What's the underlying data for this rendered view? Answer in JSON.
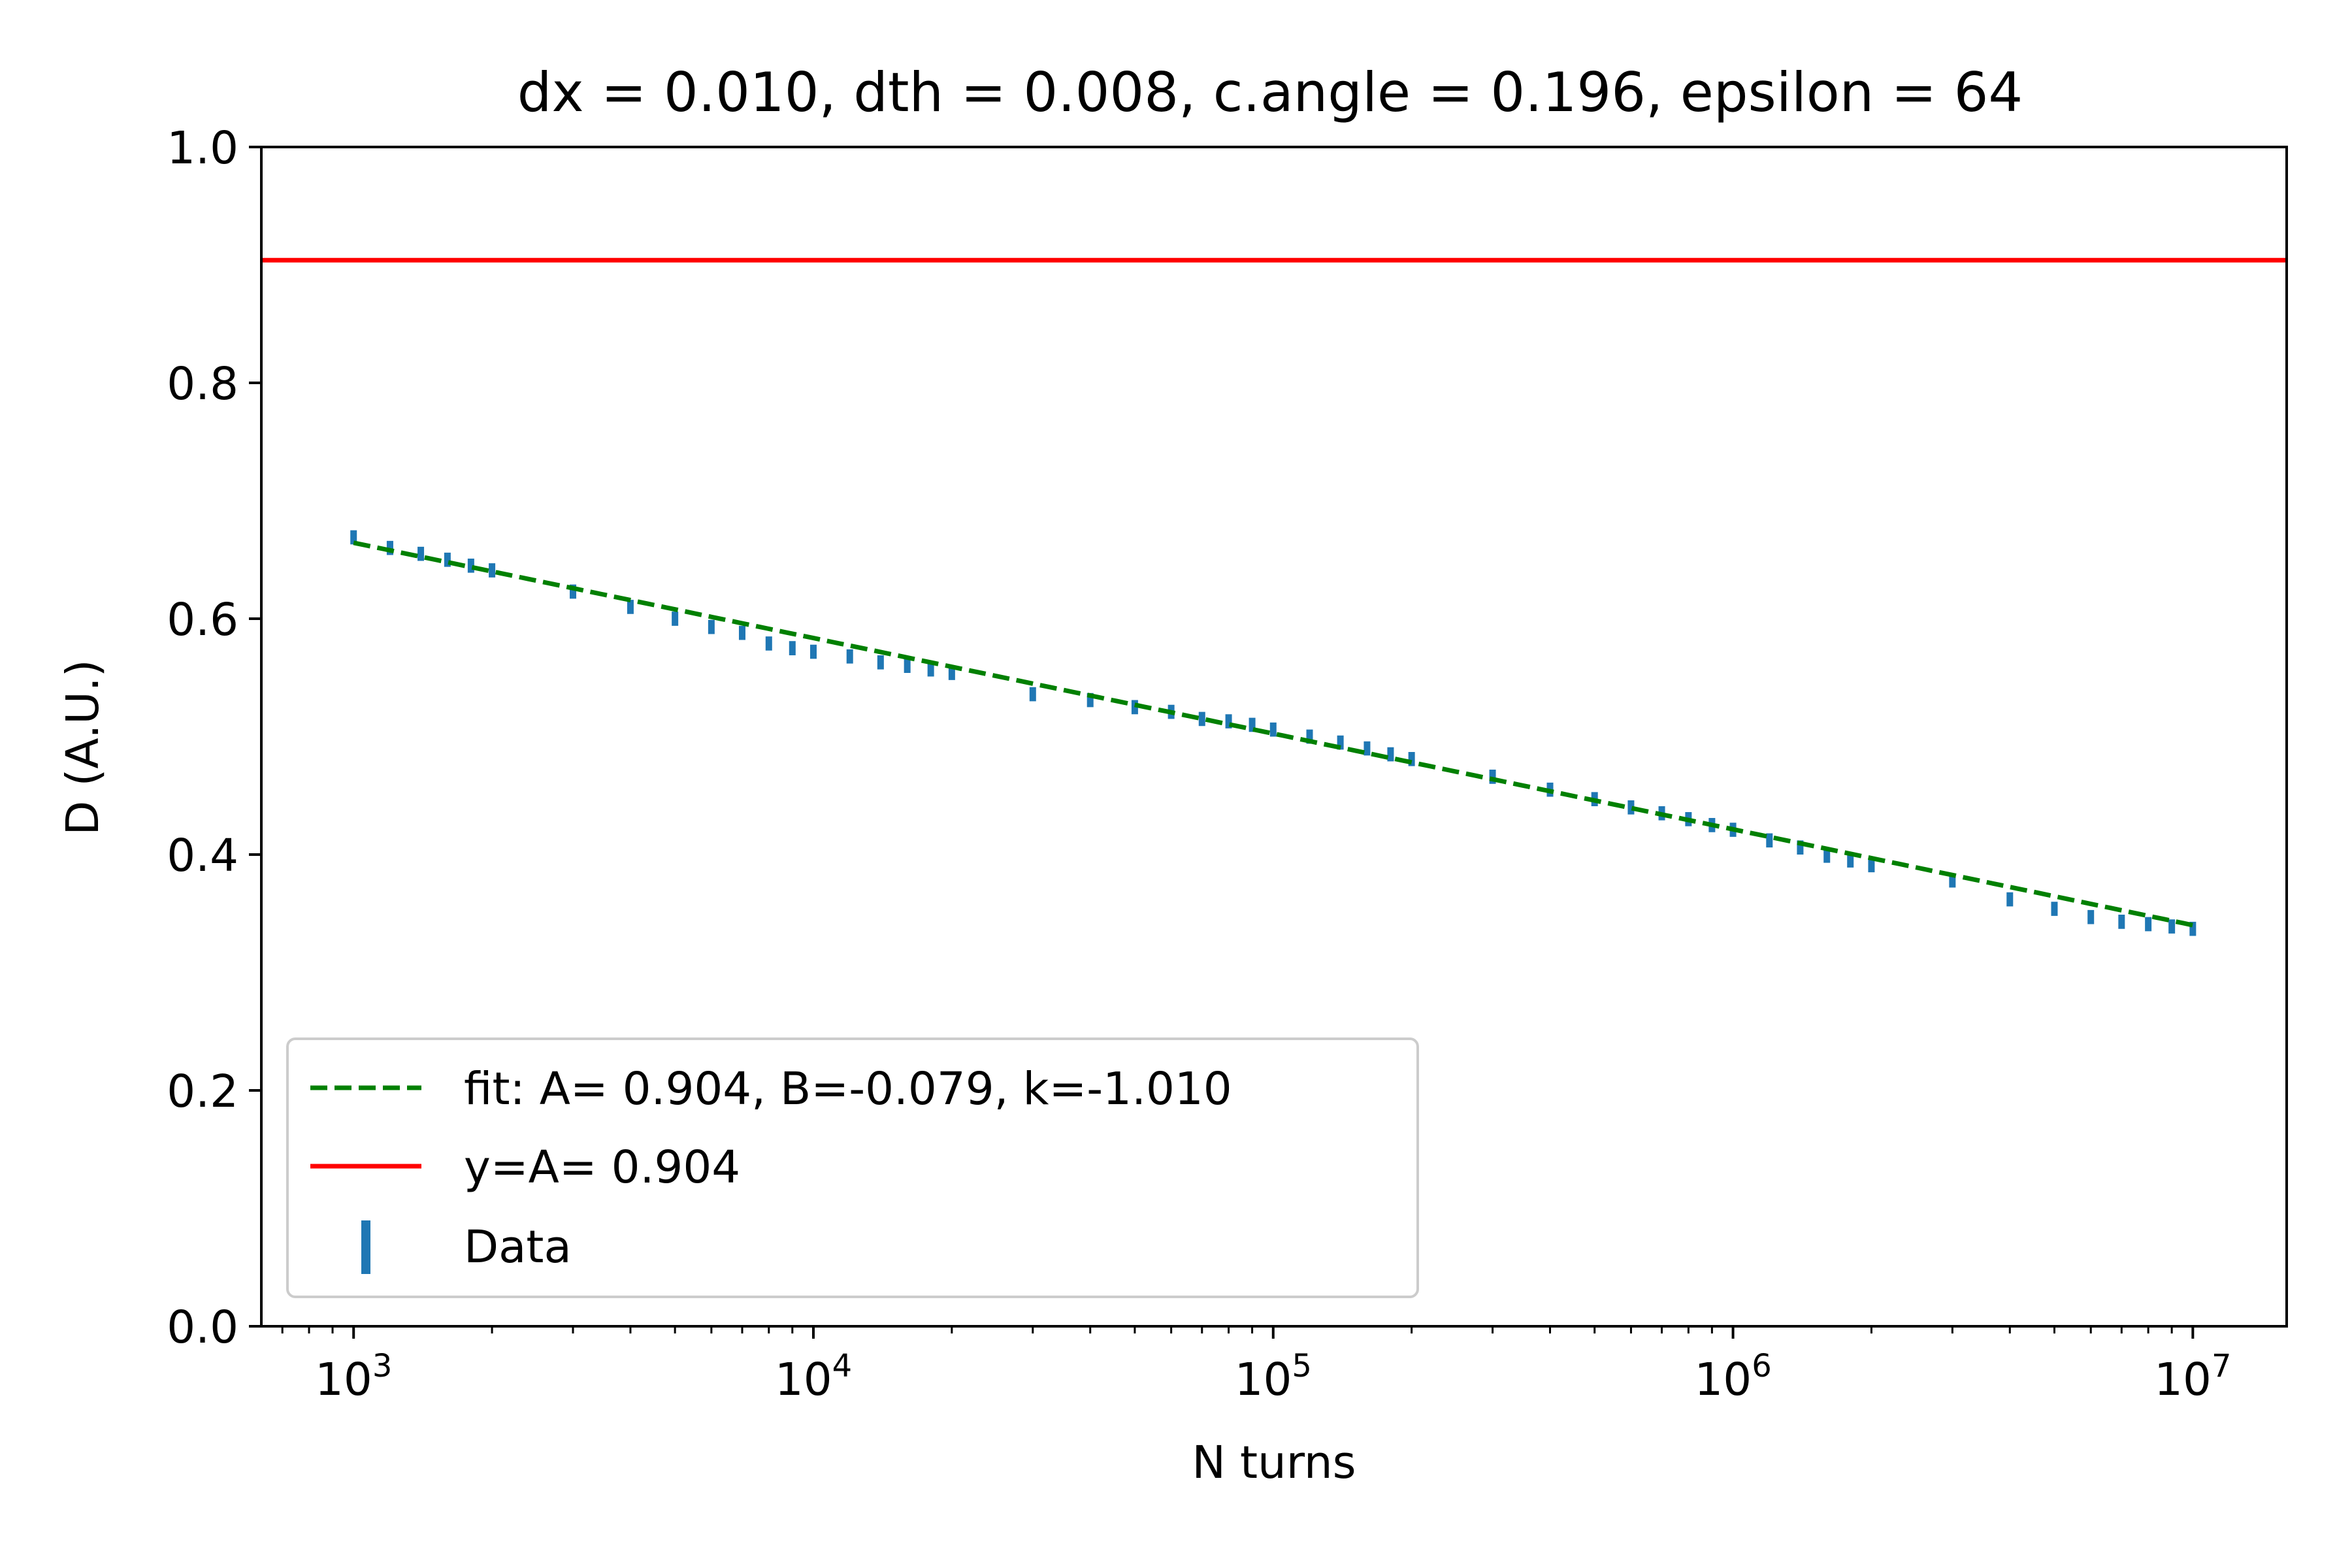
{
  "chart_data": {
    "type": "scatter",
    "title": "dx = 0.010, dth = 0.008, c.angle = 0.196, epsilon = 64",
    "xlabel": "N turns",
    "ylabel": "D (A.U.)",
    "xscale": "log",
    "xlim": [
      630,
      16000000
    ],
    "ylim": [
      0.0,
      1.0
    ],
    "grid": false,
    "legend_position": "lower-left",
    "x_ticks": [
      {
        "value": 1000,
        "base": "10",
        "exp": "3"
      },
      {
        "value": 10000,
        "base": "10",
        "exp": "4"
      },
      {
        "value": 100000,
        "base": "10",
        "exp": "5"
      },
      {
        "value": 1000000,
        "base": "10",
        "exp": "6"
      },
      {
        "value": 10000000,
        "base": "10",
        "exp": "7"
      }
    ],
    "y_ticks": [
      {
        "value": 0.0,
        "label": "0.0"
      },
      {
        "value": 0.2,
        "label": "0.2"
      },
      {
        "value": 0.4,
        "label": "0.4"
      },
      {
        "value": 0.6,
        "label": "0.6"
      },
      {
        "value": 0.8,
        "label": "0.8"
      },
      {
        "value": 1.0,
        "label": "1.0"
      }
    ],
    "series": [
      {
        "name": "fit: A= 0.904, B=-0.079, k=-1.010",
        "kind": "fit",
        "color": "#008000",
        "style": "dashed",
        "params": {
          "A": 0.904,
          "B": -0.079,
          "k": -1.01
        }
      },
      {
        "name": "y=A= 0.904",
        "kind": "hline",
        "color": "#ff0000",
        "style": "solid",
        "y": 0.904
      },
      {
        "name": "Data",
        "kind": "errorbar",
        "color": "#1f77b4",
        "yerr": 0.006,
        "x": [
          1000,
          1200,
          1400,
          1600,
          1800,
          2000,
          3000,
          4000,
          5000,
          6000,
          7000,
          8000,
          9000,
          10000,
          12000,
          14000,
          16000,
          18000,
          20000,
          30000,
          40000,
          50000,
          60000,
          70000,
          80000,
          90000,
          100000,
          120000,
          140000,
          160000,
          180000,
          200000,
          300000,
          400000,
          500000,
          600000,
          700000,
          800000,
          900000,
          1000000,
          1200000,
          1400000,
          1600000,
          1800000,
          2000000,
          3000000,
          4000000,
          5000000,
          6000000,
          7000000,
          8000000,
          9000000,
          10000000
        ],
        "y": [
          0.669,
          0.66,
          0.655,
          0.65,
          0.645,
          0.641,
          0.623,
          0.61,
          0.6,
          0.593,
          0.588,
          0.579,
          0.575,
          0.572,
          0.568,
          0.563,
          0.56,
          0.557,
          0.554,
          0.536,
          0.531,
          0.525,
          0.521,
          0.515,
          0.513,
          0.51,
          0.506,
          0.5,
          0.495,
          0.49,
          0.485,
          0.481,
          0.466,
          0.455,
          0.447,
          0.44,
          0.435,
          0.43,
          0.425,
          0.421,
          0.412,
          0.406,
          0.399,
          0.395,
          0.391,
          0.378,
          0.362,
          0.354,
          0.347,
          0.343,
          0.341,
          0.339,
          0.337
        ]
      }
    ]
  }
}
